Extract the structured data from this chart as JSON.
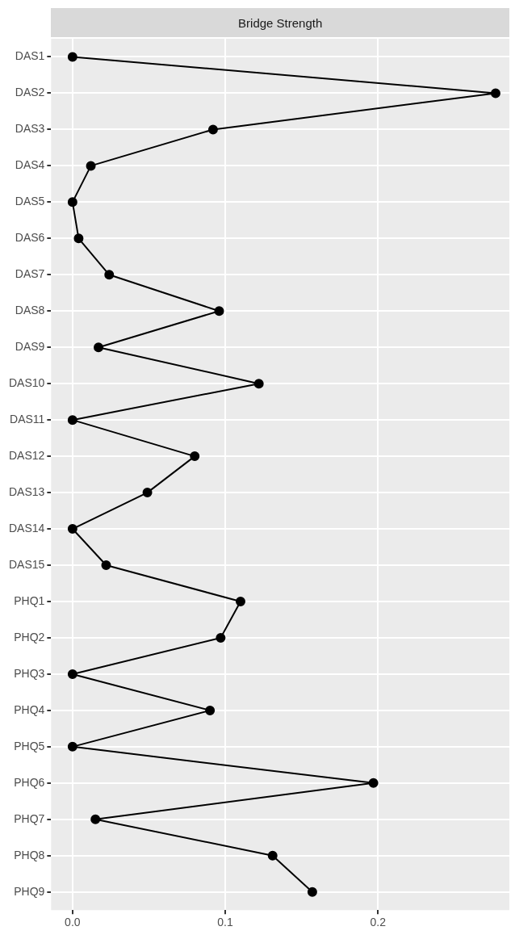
{
  "chart_data": {
    "type": "line",
    "title": "Bridge Strength",
    "orientation": "horizontal",
    "categories": [
      "DAS1",
      "DAS2",
      "DAS3",
      "DAS4",
      "DAS5",
      "DAS6",
      "DAS7",
      "DAS8",
      "DAS9",
      "DAS10",
      "DAS11",
      "DAS12",
      "DAS13",
      "DAS14",
      "DAS15",
      "PHQ1",
      "PHQ2",
      "PHQ3",
      "PHQ4",
      "PHQ5",
      "PHQ6",
      "PHQ7",
      "PHQ8",
      "PHQ9"
    ],
    "series": [
      {
        "color": "#000000",
        "values": [
          0,
          0.277,
          0.092,
          0.012,
          0,
          0.004,
          0.024,
          0.096,
          0.017,
          0.122,
          0,
          0.08,
          0.049,
          0,
          0.022,
          0.11,
          0.097,
          0,
          0.09,
          0,
          0.197,
          0.015,
          0.131,
          0.157
        ]
      }
    ],
    "xlim": [
      -0.014,
      0.286
    ],
    "xticks": [
      {
        "value": 0,
        "label": "0.0"
      },
      {
        "value": 0.1,
        "label": "0.1"
      },
      {
        "value": 0.2,
        "label": "0.2"
      }
    ],
    "grid": true,
    "legend": false,
    "marker": "circle",
    "line_style": "solid"
  }
}
